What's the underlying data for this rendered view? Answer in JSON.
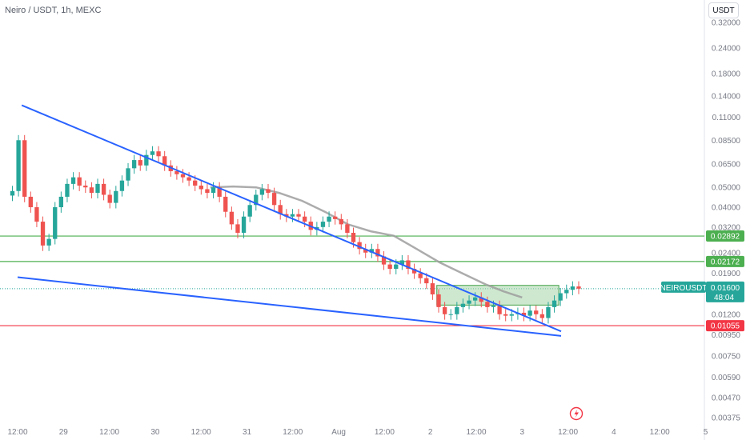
{
  "header": {
    "title": "Neiro / USDT, 1h, MEXC",
    "currency": "USDT"
  },
  "colors": {
    "up": "#26a69a",
    "down": "#ef5350",
    "trendline": "#2962ff",
    "ma": "#9e9e9e",
    "level": "#4caf50",
    "support": "#f23645",
    "box_fill": "#a5d6a7",
    "box_stroke": "#43a047"
  },
  "chart_data": {
    "type": "candlestick",
    "scale": "log",
    "ylim": [
      0.0036,
      0.33
    ],
    "y_ticks": [
      "0.32000",
      "0.24000",
      "0.18000",
      "0.14000",
      "0.11000",
      "0.08500",
      "0.06500",
      "0.05000",
      "0.04000",
      "0.03200",
      "0.02400",
      "0.01900",
      "0.01200",
      "0.00950",
      "0.00750",
      "0.00590",
      "0.00470",
      "0.00375"
    ],
    "x_ticks": [
      "12:00",
      "29",
      "12:00",
      "30",
      "12:00",
      "31",
      "12:00",
      "Aug",
      "12:00",
      "2",
      "12:00",
      "3",
      "12:00",
      "4",
      "12:00",
      "5"
    ],
    "horizontal_levels": [
      {
        "value": "0.02892",
        "price": 0.02892,
        "color": "green"
      },
      {
        "value": "0.02172",
        "price": 0.02172,
        "color": "green"
      },
      {
        "value": "0.01055",
        "price": 0.01055,
        "color": "red"
      }
    ],
    "last_price": {
      "symbol": "NEIROUSDT",
      "value": "0.01600",
      "price": 0.016,
      "countdown": "48:04"
    },
    "trendlines": [
      {
        "from": [
          0.09,
          0.126
        ],
        "to": [
          11.85,
          0.0099
        ]
      },
      {
        "from": [
          0.0,
          0.0182
        ],
        "to": [
          11.85,
          0.0094
        ]
      }
    ],
    "zone": {
      "x_from": 9.14,
      "x_to": 11.8,
      "price_top": 0.0166,
      "price_bottom": 0.0133
    },
    "moving_average": [
      [
        4.2,
        0.05
      ],
      [
        4.7,
        0.0505
      ],
      [
        5.2,
        0.05
      ],
      [
        5.7,
        0.047
      ],
      [
        6.2,
        0.043
      ],
      [
        6.7,
        0.038
      ],
      [
        7.2,
        0.033
      ],
      [
        7.7,
        0.0305
      ],
      [
        8.2,
        0.029
      ],
      [
        8.7,
        0.025
      ],
      [
        9.2,
        0.0215
      ],
      [
        9.7,
        0.019
      ],
      [
        10.2,
        0.0168
      ],
      [
        10.6,
        0.0155
      ],
      [
        11.0,
        0.0145
      ]
    ],
    "candles_close": [
      0.048,
      0.085,
      0.045,
      0.04,
      0.034,
      0.026,
      0.028,
      0.04,
      0.045,
      0.052,
      0.056,
      0.051,
      0.05,
      0.047,
      0.052,
      0.046,
      0.042,
      0.048,
      0.054,
      0.062,
      0.068,
      0.064,
      0.072,
      0.075,
      0.071,
      0.064,
      0.06,
      0.058,
      0.056,
      0.054,
      0.051,
      0.049,
      0.047,
      0.05,
      0.045,
      0.038,
      0.033,
      0.03,
      0.036,
      0.041,
      0.046,
      0.049,
      0.047,
      0.041,
      0.037,
      0.036,
      0.037,
      0.036,
      0.034,
      0.031,
      0.032,
      0.034,
      0.036,
      0.035,
      0.033,
      0.03,
      0.027,
      0.025,
      0.024,
      0.025,
      0.023,
      0.021,
      0.02,
      0.021,
      0.022,
      0.02,
      0.019,
      0.018,
      0.017,
      0.015,
      0.013,
      0.012,
      0.012,
      0.013,
      0.0135,
      0.014,
      0.0145,
      0.0138,
      0.013,
      0.0132,
      0.012,
      0.0118,
      0.012,
      0.0122,
      0.0118,
      0.0125,
      0.012,
      0.0115,
      0.013,
      0.014,
      0.0152,
      0.0158,
      0.0164,
      0.016
    ]
  }
}
